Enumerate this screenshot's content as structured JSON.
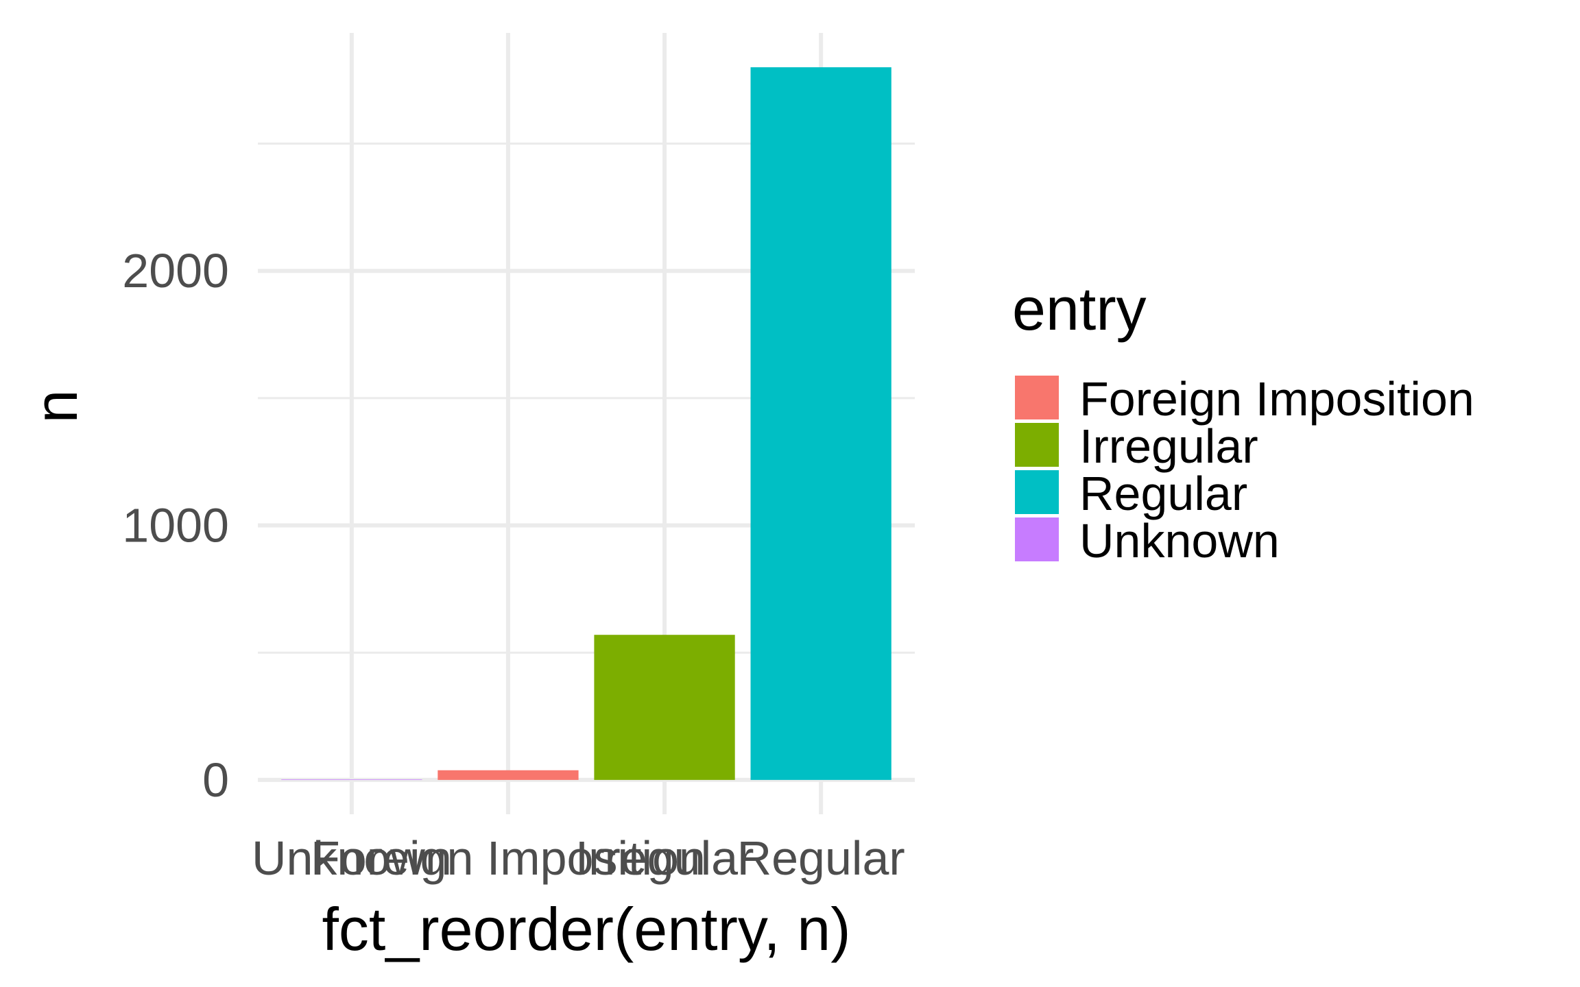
{
  "chart_data": {
    "type": "bar",
    "xlabel": "fct_reorder(entry, n)",
    "ylabel": "n",
    "categories": [
      "Unknown",
      "Foreign Imposition",
      "Irregular",
      "Regular"
    ],
    "values": [
      2,
      38,
      570,
      2800
    ],
    "fill": [
      "#C77CFF",
      "#F8766D",
      "#7CAE00",
      "#00BFC4"
    ],
    "ylim": [
      -135,
      2935
    ],
    "y_major_ticks": [
      0,
      1000,
      2000
    ],
    "y_minor_ticks": [
      500,
      1500,
      2500
    ],
    "grid": true,
    "legend": {
      "title": "entry",
      "position": "right",
      "items": [
        {
          "label": "Foreign Imposition",
          "color": "#F8766D"
        },
        {
          "label": "Irregular",
          "color": "#7CAE00"
        },
        {
          "label": "Regular",
          "color": "#00BFC4"
        },
        {
          "label": "Unknown",
          "color": "#C77CFF"
        }
      ]
    },
    "colors": {
      "grid": "#EBEBEB",
      "axis_text": "#4D4D4D",
      "title_text": "#000000"
    }
  }
}
